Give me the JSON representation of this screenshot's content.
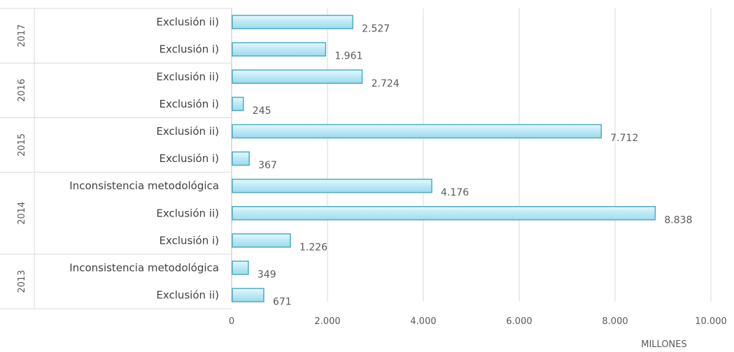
{
  "chart_data": {
    "type": "bar",
    "orientation": "horizontal",
    "x_unit_label": "MILLONES",
    "xlim": [
      0,
      10000
    ],
    "x_ticks": [
      "0",
      "2.000",
      "4.000",
      "6.000",
      "8.000",
      "10.000"
    ],
    "grid": true,
    "bar_color": "#bdeaf6",
    "bar_border_color": "#4bacc6",
    "groups": [
      {
        "year": "2017",
        "bars": [
          {
            "label": "Exclusión ii)",
            "value": 2527,
            "value_label": "2.527"
          },
          {
            "label": "Exclusión i)",
            "value": 1961,
            "value_label": "1.961"
          }
        ]
      },
      {
        "year": "2016",
        "bars": [
          {
            "label": "Exclusión ii)",
            "value": 2724,
            "value_label": "2.724"
          },
          {
            "label": "Exclusión i)",
            "value": 245,
            "value_label": "245"
          }
        ]
      },
      {
        "year": "2015",
        "bars": [
          {
            "label": "Exclusión ii)",
            "value": 7712,
            "value_label": "7.712"
          },
          {
            "label": "Exclusión i)",
            "value": 367,
            "value_label": "367"
          }
        ]
      },
      {
        "year": "2014",
        "bars": [
          {
            "label": "Inconsistencia metodológica",
            "value": 4176,
            "value_label": "4.176"
          },
          {
            "label": "Exclusión ii)",
            "value": 8838,
            "value_label": "8.838"
          },
          {
            "label": "Exclusión i)",
            "value": 1226,
            "value_label": "1.226"
          }
        ]
      },
      {
        "year": "2013",
        "bars": [
          {
            "label": "Inconsistencia metodológica",
            "value": 349,
            "value_label": "349"
          },
          {
            "label": "Exclusión ii)",
            "value": 671,
            "value_label": "671"
          }
        ]
      }
    ]
  }
}
